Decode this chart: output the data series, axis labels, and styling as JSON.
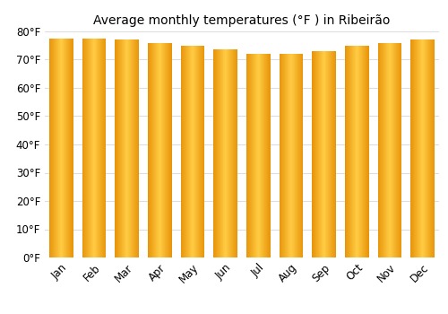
{
  "title": "Average monthly temperatures (°F ) in Ribeirão",
  "months": [
    "Jan",
    "Feb",
    "Mar",
    "Apr",
    "May",
    "Jun",
    "Jul",
    "Aug",
    "Sep",
    "Oct",
    "Nov",
    "Dec"
  ],
  "values": [
    77.5,
    77.5,
    77,
    76,
    75,
    73.5,
    72,
    72,
    73,
    75,
    76,
    77
  ],
  "ylim": [
    0,
    80
  ],
  "yticks": [
    0,
    10,
    20,
    30,
    40,
    50,
    60,
    70,
    80
  ],
  "ytick_labels": [
    "0°F",
    "10°F",
    "20°F",
    "30°F",
    "40°F",
    "50°F",
    "60°F",
    "70°F",
    "80°F"
  ],
  "bar_color_left": "#E8950A",
  "bar_color_center": "#FFCC44",
  "background_color": "#ffffff",
  "title_fontsize": 10,
  "tick_fontsize": 8.5,
  "grid_color": "#dddddd",
  "bar_width": 0.72
}
